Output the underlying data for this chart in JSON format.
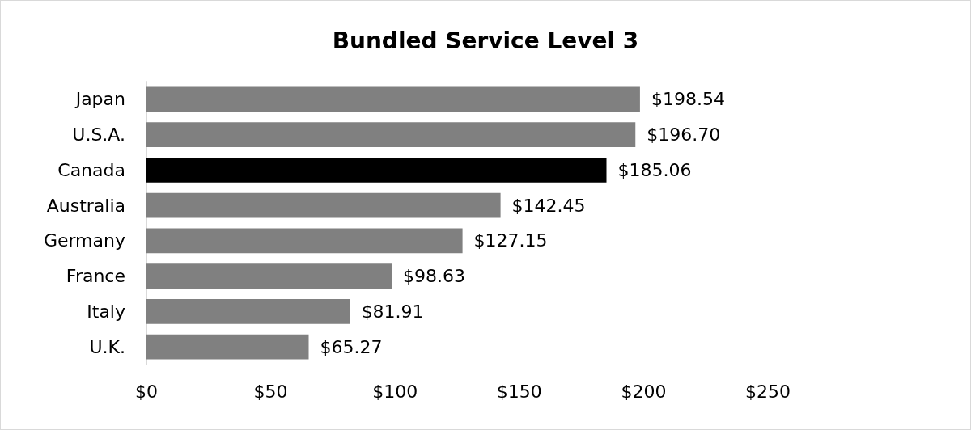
{
  "chart_data": {
    "type": "bar",
    "orientation": "horizontal",
    "title": "Bundled Service Level 3",
    "categories": [
      "Japan",
      "U.S.A.",
      "Canada",
      "Australia",
      "Germany",
      "France",
      "Italy",
      "U.K."
    ],
    "values": [
      198.54,
      196.7,
      185.06,
      142.45,
      127.15,
      98.63,
      81.91,
      65.27
    ],
    "value_labels": [
      "$198.54",
      "$196.70",
      "$185.06",
      "$142.45",
      "$127.15",
      "$98.63",
      "$81.91",
      "$65.27"
    ],
    "colors": [
      "#808080",
      "#808080",
      "#000000",
      "#808080",
      "#808080",
      "#808080",
      "#808080",
      "#808080"
    ],
    "xlim": [
      0,
      250
    ],
    "xticks": [
      {
        "value": 0,
        "label": "$0"
      },
      {
        "value": 50,
        "label": "$50"
      },
      {
        "value": 100,
        "label": "$100"
      },
      {
        "value": 150,
        "label": "$150"
      },
      {
        "value": 200,
        "label": "$200"
      },
      {
        "value": 250,
        "label": "$250"
      }
    ],
    "grid": false
  }
}
